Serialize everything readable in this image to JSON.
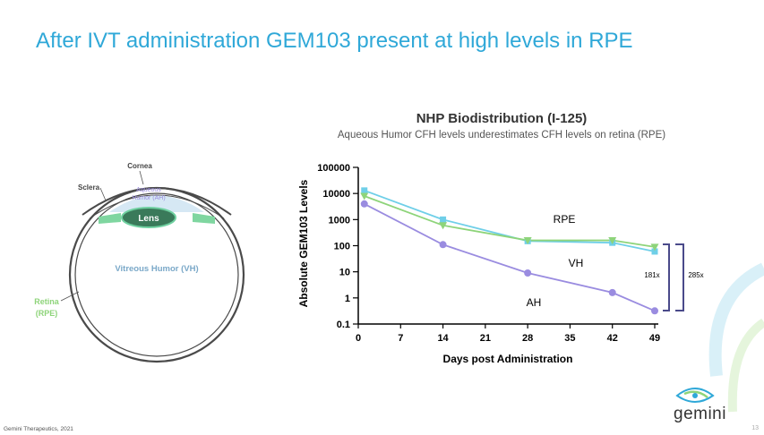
{
  "slide": {
    "title": "After IVT administration GEM103 present at high levels in RPE",
    "footer": "Gemini Therapeutics, 2021",
    "page_number": "13",
    "logo_text": "gemini"
  },
  "eye_diagram": {
    "labels": {
      "cornea": "Cornea",
      "sclera": "Sclera",
      "aqueous_1": "Aqueous",
      "aqueous_2": "Humor (AH)",
      "lens": "Lens",
      "vitreous": "Vitreous Humor (VH)",
      "retina_1": "Retina",
      "retina_2": "(RPE)"
    }
  },
  "colors": {
    "title": "#2fa8d8",
    "rpe": "#6fcfe8",
    "vh": "#8ed47a",
    "ah": "#9a8ce0",
    "bracket": "#4a4a8a"
  },
  "chart_data": {
    "type": "line",
    "title": "NHP Biodistribution (I-125)",
    "subtitle": "Aqueous Humor CFH levels underestimates CFH levels on retina (RPE)",
    "xlabel": "Days post  Administration",
    "ylabel": "Absolute GEM103 Levels",
    "x_ticks": [
      "0",
      "7",
      "14",
      "21",
      "28",
      "35",
      "42",
      "49"
    ],
    "y_ticks": [
      "0.1",
      "1",
      "10",
      "100",
      "1000",
      "10000",
      "100000"
    ],
    "y_scale": "log",
    "xlim": [
      0,
      49
    ],
    "ylim": [
      0.1,
      100000
    ],
    "series": [
      {
        "name": "RPE",
        "marker": "square",
        "color": "#6fcfe8",
        "x": [
          1,
          14,
          28,
          42,
          49
        ],
        "y": [
          13000,
          1000,
          150,
          130,
          60
        ]
      },
      {
        "name": "VH",
        "marker": "triangle-down",
        "color": "#8ed47a",
        "x": [
          1,
          14,
          28,
          42,
          49
        ],
        "y": [
          8000,
          600,
          160,
          160,
          90
        ]
      },
      {
        "name": "AH",
        "marker": "circle",
        "color": "#9a8ce0",
        "x": [
          1,
          14,
          28,
          42,
          49
        ],
        "y": [
          4000,
          110,
          9,
          1.6,
          0.32
        ]
      }
    ],
    "annotations": {
      "ratio_vh": "181x",
      "ratio_rpe": "285x"
    }
  }
}
